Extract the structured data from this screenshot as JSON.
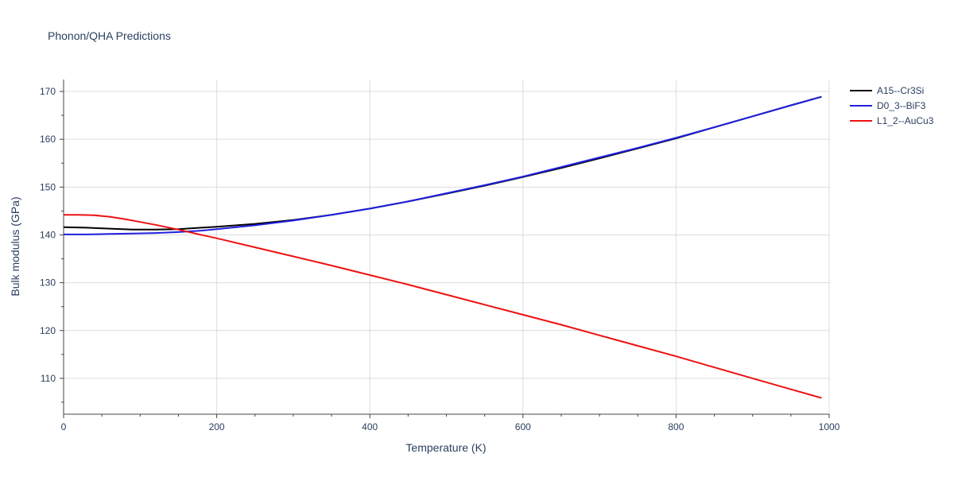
{
  "chart_data": {
    "type": "line",
    "title": "Phonon/QHA Predictions",
    "xlabel": "Temperature (K)",
    "ylabel": "Bulk modulus (GPa)",
    "xlim": [
      0,
      1000
    ],
    "ylim": [
      102.5,
      172.5
    ],
    "x_ticks": [
      0,
      200,
      400,
      600,
      800,
      1000
    ],
    "y_ticks": [
      110,
      120,
      130,
      140,
      150,
      160,
      170
    ],
    "x_tick_labels": [
      "0",
      "200",
      "400",
      "600",
      "800",
      "1000"
    ],
    "y_tick_labels": [
      "110",
      "120",
      "130",
      "140",
      "150",
      "160",
      "170"
    ],
    "grid": true,
    "legend_position": "top-right",
    "series": [
      {
        "name": "A15--Cr3Si",
        "color": "#000000",
        "x": [
          0,
          30,
          60,
          90,
          120,
          150,
          180,
          200,
          250,
          300,
          350,
          400,
          450,
          500,
          550,
          600,
          650,
          700,
          750,
          800,
          850,
          900,
          950,
          990
        ],
        "y": [
          141.6,
          141.5,
          141.3,
          141.1,
          141.1,
          141.2,
          141.5,
          141.7,
          142.3,
          143.1,
          144.2,
          145.5,
          147.0,
          148.6,
          150.3,
          152.1,
          154.0,
          156.0,
          158.1,
          160.2,
          162.5,
          164.8,
          167.1,
          168.9
        ]
      },
      {
        "name": "D0_3--BiF3",
        "color": "#1f1fe0",
        "x": [
          0,
          30,
          60,
          90,
          120,
          150,
          180,
          200,
          250,
          300,
          350,
          400,
          450,
          500,
          550,
          600,
          650,
          700,
          750,
          800,
          850,
          900,
          950,
          990
        ],
        "y": [
          140.1,
          140.1,
          140.2,
          140.3,
          140.4,
          140.6,
          140.9,
          141.2,
          142.0,
          143.0,
          144.2,
          145.5,
          147.0,
          148.7,
          150.4,
          152.2,
          154.2,
          156.2,
          158.2,
          160.3,
          162.5,
          164.8,
          167.1,
          168.9
        ]
      },
      {
        "name": "L1_2--AuCu3",
        "color": "#ee1111",
        "x": [
          0,
          20,
          40,
          60,
          80,
          100,
          120,
          150,
          180,
          200,
          250,
          300,
          350,
          400,
          450,
          500,
          550,
          600,
          650,
          700,
          750,
          800,
          850,
          900,
          950,
          990
        ],
        "y": [
          144.2,
          144.2,
          144.1,
          143.8,
          143.3,
          142.7,
          142.1,
          141.1,
          140.0,
          139.3,
          137.4,
          135.5,
          133.6,
          131.6,
          129.6,
          127.5,
          125.4,
          123.3,
          121.2,
          119.0,
          116.8,
          114.6,
          112.3,
          110.0,
          107.7,
          105.9
        ]
      }
    ]
  }
}
